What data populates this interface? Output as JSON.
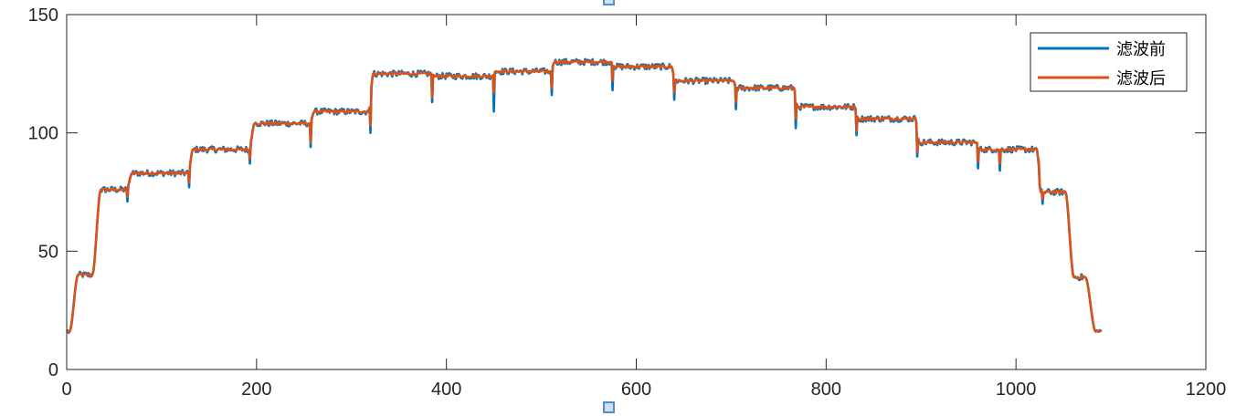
{
  "chart_data": {
    "type": "line",
    "title": "",
    "xlabel": "",
    "ylabel": "",
    "xlim": [
      0,
      1200
    ],
    "ylim": [
      0,
      150
    ],
    "xticks": [
      0,
      200,
      400,
      600,
      800,
      1000,
      1200
    ],
    "yticks": [
      0,
      50,
      100,
      150
    ],
    "grid": false,
    "legend_position": "top-right",
    "steps": [
      {
        "x0": 0,
        "x1": 3,
        "y": 16
      },
      {
        "x0": 12,
        "x1": 27,
        "y": 40
      },
      {
        "x0": 36,
        "x1": 63,
        "y": 76
      },
      {
        "x0": 69,
        "x1": 128,
        "y": 83
      },
      {
        "x0": 133,
        "x1": 192,
        "y": 93
      },
      {
        "x0": 198,
        "x1": 256,
        "y": 104
      },
      {
        "x0": 261,
        "x1": 318,
        "y": 109
      },
      {
        "x0": 323,
        "x1": 384,
        "y": 125
      },
      {
        "x0": 388,
        "x1": 448,
        "y": 124
      },
      {
        "x0": 452,
        "x1": 510,
        "y": 126
      },
      {
        "x0": 514,
        "x1": 573,
        "y": 130
      },
      {
        "x0": 577,
        "x1": 637,
        "y": 128
      },
      {
        "x0": 641,
        "x1": 702,
        "y": 122
      },
      {
        "x0": 706,
        "x1": 766,
        "y": 119
      },
      {
        "x0": 770,
        "x1": 830,
        "y": 111
      },
      {
        "x0": 834,
        "x1": 894,
        "y": 106
      },
      {
        "x0": 898,
        "x1": 958,
        "y": 96
      },
      {
        "x0": 962,
        "x1": 1022,
        "y": 93
      },
      {
        "x0": 1026,
        "x1": 1052,
        "y": 75
      },
      {
        "x0": 1061,
        "x1": 1073,
        "y": 39
      },
      {
        "x0": 1084,
        "x1": 1090,
        "y": 16
      }
    ],
    "dips": [
      {
        "x": 64,
        "before": 71,
        "after": 73
      },
      {
        "x": 129,
        "before": 77,
        "after": 79
      },
      {
        "x": 193,
        "before": 87,
        "after": 89
      },
      {
        "x": 257,
        "before": 94,
        "after": 96
      },
      {
        "x": 320,
        "before": 100,
        "after": 103
      },
      {
        "x": 385,
        "before": 113,
        "after": 115
      },
      {
        "x": 450,
        "before": 109,
        "after": 117
      },
      {
        "x": 511,
        "before": 116,
        "after": 119
      },
      {
        "x": 575,
        "before": 118,
        "after": 122
      },
      {
        "x": 640,
        "before": 114,
        "after": 117
      },
      {
        "x": 705,
        "before": 110,
        "after": 113
      },
      {
        "x": 768,
        "before": 102,
        "after": 106
      },
      {
        "x": 832,
        "before": 99,
        "after": 101
      },
      {
        "x": 896,
        "before": 90,
        "after": 92
      },
      {
        "x": 960,
        "before": 85,
        "after": 88
      },
      {
        "x": 983,
        "before": 84,
        "after": 87
      },
      {
        "x": 1024,
        "before": 86,
        "after": 88
      },
      {
        "x": 1028,
        "before": 70,
        "after": 72
      }
    ],
    "series": [
      {
        "name": "滤波前",
        "color": "#0072BD"
      },
      {
        "name": "滤波后",
        "color": "#D95319"
      }
    ]
  }
}
